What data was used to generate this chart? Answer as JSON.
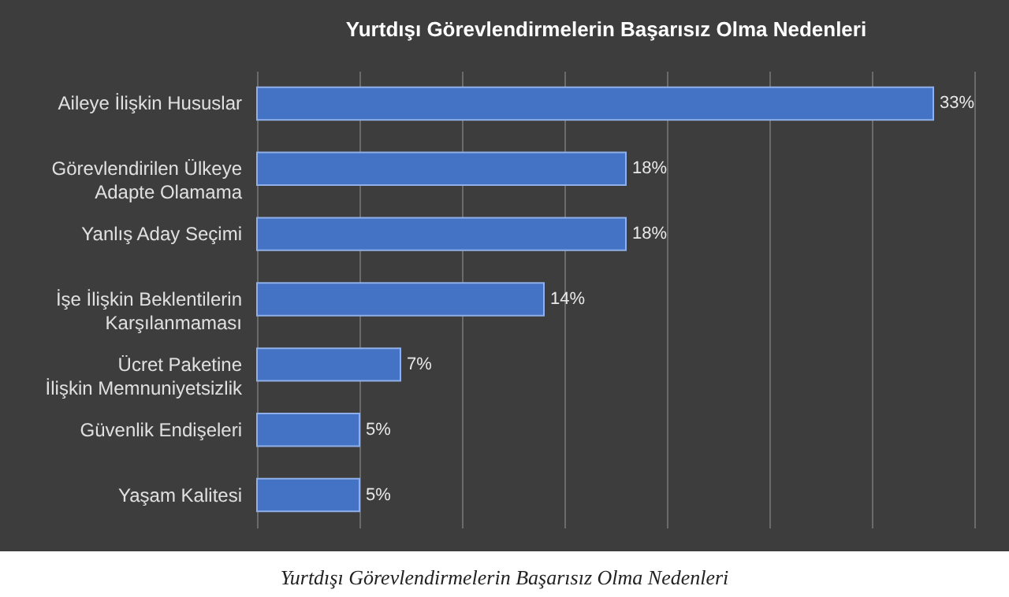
{
  "chart_data": {
    "type": "bar",
    "orientation": "horizontal",
    "title": "Yurtdışı Görevlendirmelerin Başarısız Olma Nedenleri",
    "categories": [
      "Aileye İlişkin Hususlar",
      "Görevlendirilen Ülkeye\nAdapte Olamama",
      "Yanlış Aday Seçimi",
      "İşe İlişkin Beklentilerin\nKarşılanmaması",
      "Ücret Paketine\nİlişkin Memnuniyetsizlik",
      "Güvenlik Endişeleri",
      "Yaşam Kalitesi"
    ],
    "values": [
      33,
      18,
      18,
      14,
      7,
      5,
      5
    ],
    "value_labels": [
      "33%",
      "18%",
      "18%",
      "14%",
      "7%",
      "5%",
      "5%"
    ],
    "color": "#4472c4",
    "tick_labels": "y",
    "grid": "x",
    "annotations": [
      "Yurtdışı Görevlendirmelerin Başarısız Olma Nedenleri"
    ]
  }
}
